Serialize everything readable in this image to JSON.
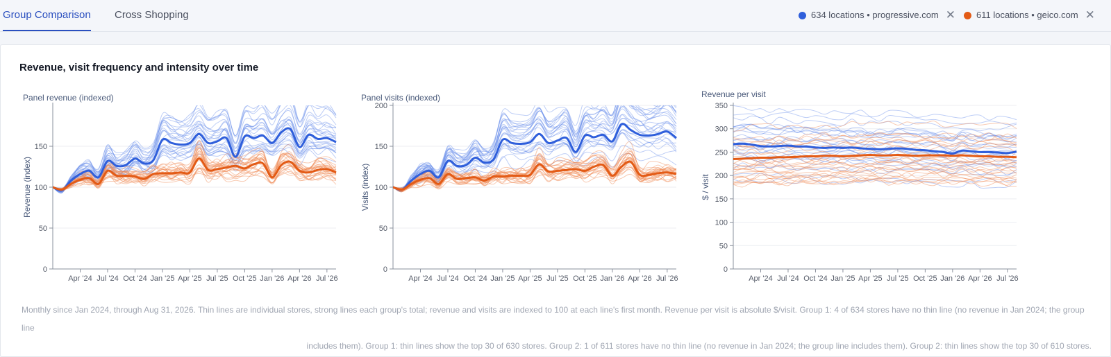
{
  "tabs": [
    {
      "label": "Group Comparison",
      "active": true
    },
    {
      "label": "Cross Shopping",
      "active": false
    }
  ],
  "groups": [
    {
      "label": "634 locations • progressive.com",
      "color": "#2f5fdb",
      "close_icon": "close-icon"
    },
    {
      "label": "611 locations • geico.com",
      "color": "#e35b16",
      "close_icon": "close-icon"
    }
  ],
  "card": {
    "title": "Revenue, visit frequency and intensity over time",
    "footnote_line1": "Monthly since Jan 2024, through Aug 31, 2026. Thin lines are individual stores, strong lines each group's total; revenue and visits are indexed to 100 at each line's first month. Revenue per visit is absolute $/visit. Group 1: 4 of 634 stores have no thin line (no revenue in Jan 2024; the group line",
    "footnote_line2": "includes them). Group 1: thin lines show the top 30 of 630 stores. Group 2: 1 of 611 stores have no thin line (no revenue in Jan 2024; the group line includes them). Group 2: thin lines show the top 30 of 610 stores."
  },
  "chart_data": [
    {
      "type": "line",
      "title": "Panel revenue (indexed)",
      "ylabel": "Revenue (index)",
      "xlabel": "",
      "x_start": "Jan 2024",
      "x_end": "Aug 2026",
      "x_tick_labels": [
        "Apr '24",
        "Jul '24",
        "Oct '24",
        "Jan '25",
        "Apr '25",
        "Jul '25",
        "Oct '25",
        "Jan '26",
        "Apr '26",
        "Jul '26"
      ],
      "y_ticks": [
        0,
        50,
        100,
        150
      ],
      "ylim": [
        0,
        200
      ],
      "series": [
        {
          "name": "634 locations • progressive.com",
          "color": "#2f5fdb",
          "values": [
            100,
            96,
            108,
            116,
            120,
            112,
            132,
            126,
            127,
            135,
            129,
            133,
            158,
            154,
            152,
            154,
            165,
            154,
            156,
            160,
            137,
            162,
            160,
            163,
            154,
            167,
            171,
            149,
            164,
            159,
            160,
            155
          ]
        },
        {
          "name": "611 locations • geico.com",
          "color": "#e35b16",
          "values": [
            100,
            97,
            104,
            109,
            111,
            104,
            120,
            114,
            114,
            113,
            110,
            116,
            117,
            117,
            118,
            118,
            135,
            121,
            122,
            124,
            126,
            123,
            128,
            129,
            112,
            127,
            131,
            120,
            118,
            121,
            122,
            118
          ]
        }
      ]
    },
    {
      "type": "line",
      "title": "Panel visits (indexed)",
      "ylabel": "Visits (index)",
      "xlabel": "",
      "x_start": "Jan 2024",
      "x_end": "Aug 2026",
      "x_tick_labels": [
        "Apr '24",
        "Jul '24",
        "Oct '24",
        "Jan '25",
        "Apr '25",
        "Jul '25",
        "Oct '25",
        "Jan '26",
        "Apr '26",
        "Jul '26"
      ],
      "y_ticks": [
        0,
        50,
        100,
        150,
        200
      ],
      "ylim": [
        0,
        200
      ],
      "series": [
        {
          "name": "634 locations • progressive.com",
          "color": "#2f5fdb",
          "values": [
            100,
            97,
            108,
            116,
            120,
            112,
            132,
            126,
            127,
            136,
            130,
            134,
            158,
            154,
            153,
            155,
            165,
            154,
            157,
            160,
            143,
            163,
            161,
            164,
            156,
            177,
            170,
            164,
            163,
            165,
            168,
            160
          ]
        },
        {
          "name": "611 locations • geico.com",
          "color": "#e35b16",
          "values": [
            100,
            97,
            104,
            109,
            111,
            104,
            116,
            110,
            111,
            112,
            108,
            113,
            113,
            114,
            114,
            115,
            128,
            119,
            120,
            121,
            122,
            120,
            125,
            127,
            114,
            125,
            131,
            115,
            115,
            117,
            118,
            116
          ]
        }
      ]
    },
    {
      "type": "line",
      "title": "Revenue per visit",
      "ylabel": "$ / visit",
      "xlabel": "",
      "x_start": "Jan 2024",
      "x_end": "Aug 2026",
      "x_tick_labels": [
        "Apr '24",
        "Jul '24",
        "Oct '24",
        "Jan '25",
        "Apr '25",
        "Jul '25",
        "Oct '25",
        "Jan '26",
        "Apr '26",
        "Jul '26"
      ],
      "y_ticks": [
        0,
        50,
        100,
        150,
        200,
        250,
        300,
        350
      ],
      "ylim": [
        0,
        350
      ],
      "series": [
        {
          "name": "634 locations • progressive.com",
          "color": "#2f5fdb",
          "values": [
            267,
            268,
            266,
            263,
            262,
            263,
            264,
            262,
            262,
            260,
            259,
            260,
            259,
            260,
            258,
            257,
            256,
            257,
            258,
            257,
            255,
            254,
            252,
            250,
            247,
            253,
            252,
            250,
            250,
            249,
            248,
            251
          ]
        },
        {
          "name": "611 locations • geico.com",
          "color": "#e35b16",
          "values": [
            235,
            236,
            237,
            238,
            238,
            239,
            239,
            240,
            241,
            241,
            242,
            242,
            241,
            242,
            243,
            244,
            243,
            243,
            244,
            243,
            242,
            243,
            243,
            243,
            242,
            243,
            242,
            241,
            241,
            240,
            240,
            239
          ]
        }
      ]
    }
  ]
}
